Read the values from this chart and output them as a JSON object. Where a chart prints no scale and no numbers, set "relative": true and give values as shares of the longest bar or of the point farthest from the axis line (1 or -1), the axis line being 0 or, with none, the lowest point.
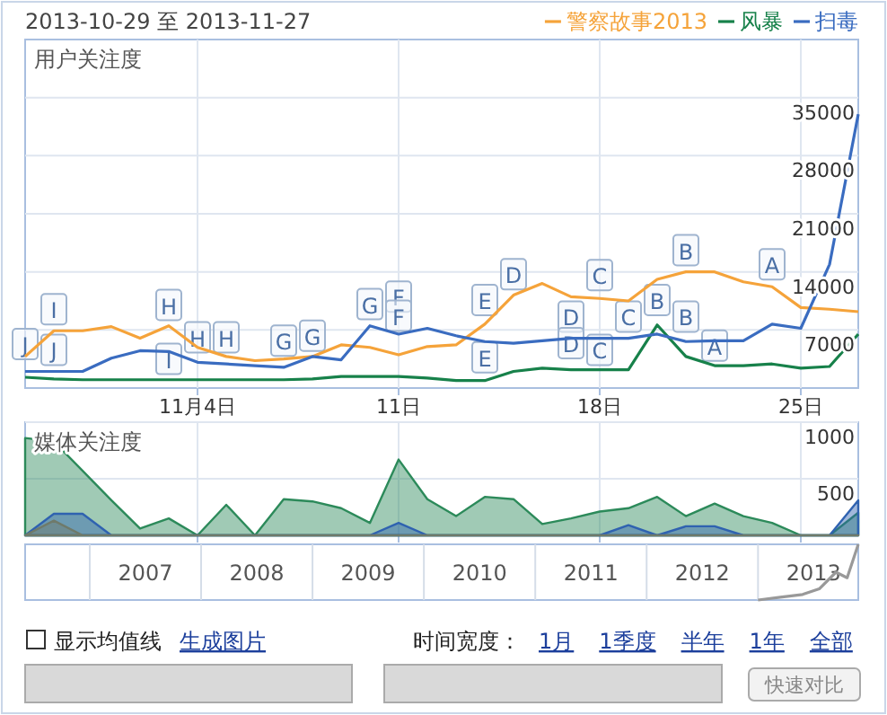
{
  "chart_data": [
    {
      "type": "line",
      "title": "2013-10-29 至 2013-11-27",
      "ylabel": "用户关注度",
      "legend": "top right",
      "grid": true,
      "x": [
        "--10-29",
        "--10-30",
        "--10-31",
        "--11-01",
        "--11-02",
        "--11-03",
        "--11-04",
        "--11-05",
        "--11-06",
        "--11-07",
        "--11-08",
        "--11-09",
        "--11-10",
        "--11-11",
        "--11-12",
        "--11-13",
        "--11-14",
        "--11-15",
        "--11-16",
        "--11-17",
        "--11-18",
        "--11-19",
        "--11-20",
        "--11-21",
        "--11-22",
        "--11-23",
        "--11-24",
        "--11-25",
        "--11-26",
        "--11-27"
      ],
      "xlim": [
        "--10-29",
        "--11-27"
      ],
      "xticks": [
        {
          "value": "--11-04",
          "label": "11月4日"
        },
        {
          "value": "--11-11",
          "label": "11日"
        },
        {
          "value": "--11-18",
          "label": "18日"
        },
        {
          "value": "--11-25",
          "label": "25日"
        }
      ],
      "ylim": [
        0,
        42000
      ],
      "yticks": [
        7000,
        14000,
        21000,
        28000,
        35000
      ],
      "series": [
        {
          "name": "警察故事2013",
          "color": "#f5a33a",
          "values": [
            3800,
            6900,
            6900,
            7400,
            6000,
            7500,
            4900,
            3800,
            3300,
            3500,
            3800,
            5200,
            4900,
            4000,
            5000,
            5200,
            7700,
            11200,
            12600,
            11000,
            10800,
            10500,
            13100,
            14000,
            14000,
            12800,
            12200,
            9700,
            9500,
            9200
          ]
        },
        {
          "name": "风暴",
          "color": "#17814a",
          "values": [
            1300,
            1100,
            1000,
            1000,
            1000,
            1000,
            1000,
            1000,
            1000,
            1000,
            1100,
            1400,
            1400,
            1400,
            1200,
            900,
            900,
            2000,
            2400,
            2200,
            2200,
            2200,
            7600,
            3800,
            2700,
            2700,
            2900,
            2400,
            2600,
            6500
          ]
        },
        {
          "name": "扫毒",
          "color": "#3a6cc0",
          "values": [
            2000,
            2000,
            2000,
            3600,
            4500,
            4400,
            3100,
            2900,
            2700,
            2500,
            3800,
            3400,
            7500,
            6500,
            7200,
            6300,
            5600,
            5400,
            5700,
            6000,
            6000,
            6000,
            6500,
            5600,
            5700,
            5700,
            7700,
            7200,
            14900,
            33000
          ]
        }
      ],
      "annotations": [
        {
          "text": "J",
          "x": "--10-29",
          "y": 5200
        },
        {
          "text": "I",
          "x": "--10-30",
          "y": 9400
        },
        {
          "text": "J",
          "x": "--10-30",
          "y": 4500
        },
        {
          "text": "H",
          "x": "--11-03",
          "y": 9900
        },
        {
          "text": "I",
          "x": "--11-03",
          "y": 3400
        },
        {
          "text": "H",
          "x": "--11-04",
          "y": 6000
        },
        {
          "text": "H",
          "x": "--11-05",
          "y": 6000
        },
        {
          "text": "G",
          "x": "--11-07",
          "y": 5600
        },
        {
          "text": "G",
          "x": "--11-08",
          "y": 6200
        },
        {
          "text": "G",
          "x": "--11-10",
          "y": 10000
        },
        {
          "text": "F",
          "x": "--11-11",
          "y": 10900
        },
        {
          "text": "F",
          "x": "--11-11",
          "y": 8600
        },
        {
          "text": "E",
          "x": "--11-14",
          "y": 10500
        },
        {
          "text": "E",
          "x": "--11-14",
          "y": 3600
        },
        {
          "text": "D",
          "x": "--11-15",
          "y": 13600
        },
        {
          "text": "D",
          "x": "--11-17",
          "y": 8500
        },
        {
          "text": "D",
          "x": "--11-17",
          "y": 5300
        },
        {
          "text": "C",
          "x": "--11-18",
          "y": 13500
        },
        {
          "text": "C",
          "x": "--11-18",
          "y": 4500
        },
        {
          "text": "C",
          "x": "--11-19",
          "y": 8500
        },
        {
          "text": "B",
          "x": "--11-20",
          "y": 10500
        },
        {
          "text": "B",
          "x": "--11-21",
          "y": 16500
        },
        {
          "text": "B",
          "x": "--11-21",
          "y": 8500
        },
        {
          "text": "A",
          "x": "--11-22",
          "y": 5000
        },
        {
          "text": "A",
          "x": "--11-24",
          "y": 14800
        }
      ]
    },
    {
      "type": "area",
      "ylabel": "媒体关注度",
      "grid": true,
      "tick_labels": "y",
      "x": [
        "--10-29",
        "--10-30",
        "--10-31",
        "--11-01",
        "--11-02",
        "--11-03",
        "--11-04",
        "--11-05",
        "--11-06",
        "--11-07",
        "--11-08",
        "--11-09",
        "--11-10",
        "--11-11",
        "--11-12",
        "--11-13",
        "--11-14",
        "--11-15",
        "--11-16",
        "--11-17",
        "--11-18",
        "--11-19",
        "--11-20",
        "--11-21",
        "--11-22",
        "--11-23",
        "--11-24",
        "--11-25",
        "--11-26",
        "--11-27"
      ],
      "xlim": [
        "--10-29",
        "--11-27"
      ],
      "xticks": [
        "--11-04",
        "--11-11",
        "--11-18",
        "--11-25"
      ],
      "ylim": [
        0,
        1000
      ],
      "yticks": [
        500,
        1000
      ],
      "series": [
        {
          "color": "#2c8a5a",
          "values": [
            860,
            830,
            570,
            310,
            60,
            150,
            0,
            270,
            0,
            320,
            300,
            240,
            110,
            670,
            320,
            170,
            340,
            320,
            100,
            150,
            210,
            240,
            340,
            170,
            280,
            170,
            110,
            0,
            0,
            200
          ]
        },
        {
          "color": "#2f62b0",
          "values": [
            0,
            190,
            190,
            0,
            0,
            0,
            0,
            0,
            0,
            0,
            0,
            0,
            0,
            110,
            0,
            0,
            0,
            0,
            0,
            0,
            0,
            90,
            0,
            80,
            80,
            0,
            0,
            0,
            0,
            310
          ]
        },
        {
          "color": "#6f7a6a",
          "values": [
            0,
            130,
            0,
            0,
            0,
            0,
            0,
            0,
            0,
            0,
            0,
            0,
            0,
            0,
            0,
            0,
            0,
            0,
            0,
            0,
            0,
            0,
            0,
            0,
            0,
            0,
            0,
            0,
            0,
            0
          ]
        }
      ]
    },
    {
      "type": "line",
      "relative": true,
      "tick_labels": "x",
      "grid": "x",
      "xlim": [
        2006.42,
        2013.9
      ],
      "xticks": [
        {
          "value": 2007,
          "label": null
        },
        {
          "value": 2007.5,
          "label": "2007"
        },
        {
          "value": 2008,
          "label": null
        },
        {
          "value": 2008.5,
          "label": "2008"
        },
        {
          "value": 2009,
          "label": null
        },
        {
          "value": 2009.5,
          "label": "2009"
        },
        {
          "value": 2010,
          "label": null
        },
        {
          "value": 2010.5,
          "label": "2010"
        },
        {
          "value": 2011,
          "label": null
        },
        {
          "value": 2011.5,
          "label": "2011"
        },
        {
          "value": 2012,
          "label": null
        },
        {
          "value": 2012.5,
          "label": "2012"
        },
        {
          "value": 2013,
          "label": null
        },
        {
          "value": 2013.5,
          "label": "2013"
        }
      ],
      "series": [
        {
          "color": "#999999",
          "x": [
            2013.0,
            2013.2,
            2013.4,
            2013.55,
            2013.7,
            2013.8,
            2013.9
          ],
          "values": [
            0,
            0.05,
            0.1,
            0.2,
            0.5,
            0.4,
            1
          ]
        }
      ]
    },
    {
      "type": "other",
      "annotations": [
        "显示均值线",
        "生成图片",
        "时间宽度：",
        "1月",
        "1季度",
        "半年",
        "1年",
        "全部",
        "快速对比"
      ]
    }
  ]
}
